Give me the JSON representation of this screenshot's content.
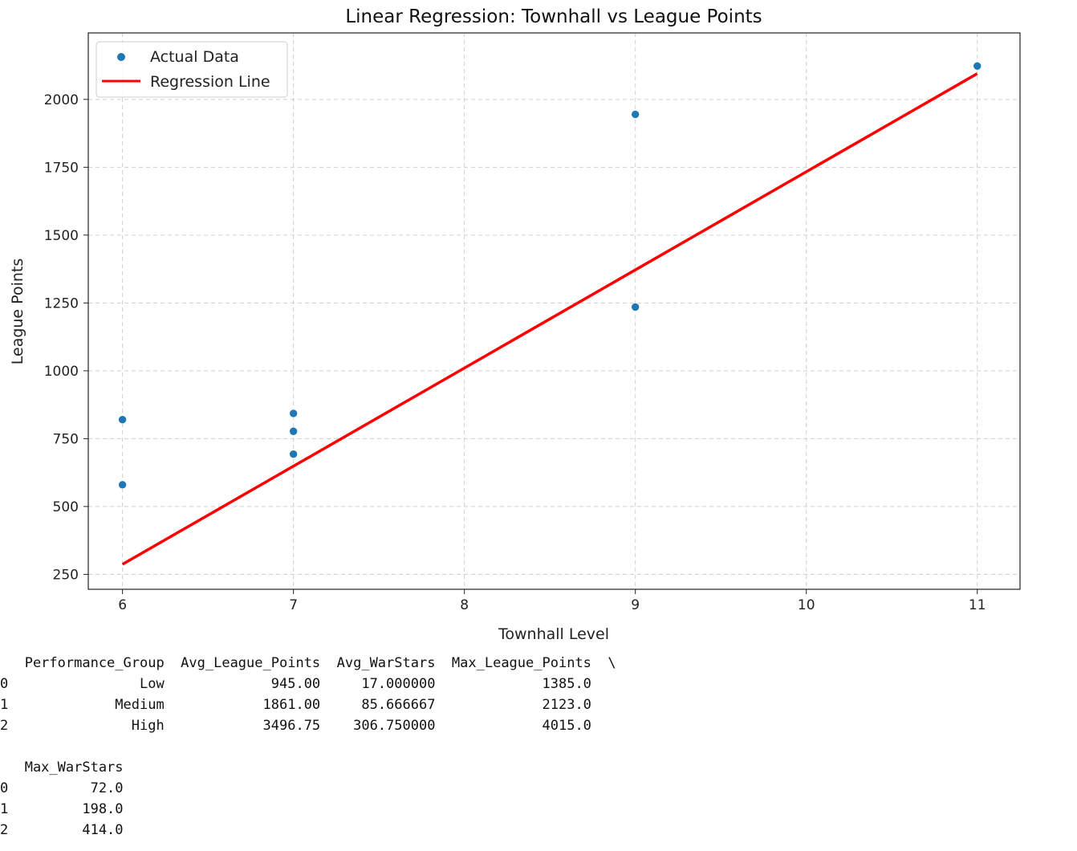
{
  "chart_data": {
    "type": "scatter",
    "title": "Linear Regression: Townhall vs League Points",
    "xlabel": "Townhall Level",
    "ylabel": "League Points",
    "xlim": [
      5.8,
      11.25
    ],
    "ylim": [
      195,
      2245
    ],
    "xticks": [
      6,
      7,
      8,
      9,
      10,
      11
    ],
    "yticks": [
      250,
      500,
      750,
      1000,
      1250,
      1500,
      1750,
      2000
    ],
    "grid": true,
    "legend_position": "top-left",
    "series": [
      {
        "name": "Actual Data",
        "kind": "scatter",
        "color": "#1f77b4",
        "points": [
          {
            "x": 6,
            "y": 820
          },
          {
            "x": 6,
            "y": 580
          },
          {
            "x": 7,
            "y": 843
          },
          {
            "x": 7,
            "y": 777
          },
          {
            "x": 7,
            "y": 693
          },
          {
            "x": 9,
            "y": 1945
          },
          {
            "x": 9,
            "y": 1235
          },
          {
            "x": 11,
            "y": 2123
          }
        ]
      },
      {
        "name": "Regression Line",
        "kind": "line",
        "color": "#ff0000",
        "points": [
          {
            "x": 6,
            "y": 287
          },
          {
            "x": 11,
            "y": 2095
          }
        ]
      }
    ]
  },
  "table1": {
    "columns": [
      "Performance_Group",
      "Avg_League_Points",
      "Avg_WarStars",
      "Max_League_Points"
    ],
    "continuation": "\\",
    "index": [
      "0",
      "1",
      "2"
    ],
    "rows": [
      [
        "Low",
        "945.00",
        "17.000000",
        "1385.0"
      ],
      [
        "Medium",
        "1861.00",
        "85.666667",
        "2123.0"
      ],
      [
        "High",
        "3496.75",
        "306.750000",
        "4015.0"
      ]
    ]
  },
  "table2": {
    "columns": [
      "Max_WarStars"
    ],
    "index": [
      "0",
      "1",
      "2"
    ],
    "rows": [
      [
        "72.0"
      ],
      [
        "198.0"
      ],
      [
        "414.0"
      ]
    ]
  }
}
